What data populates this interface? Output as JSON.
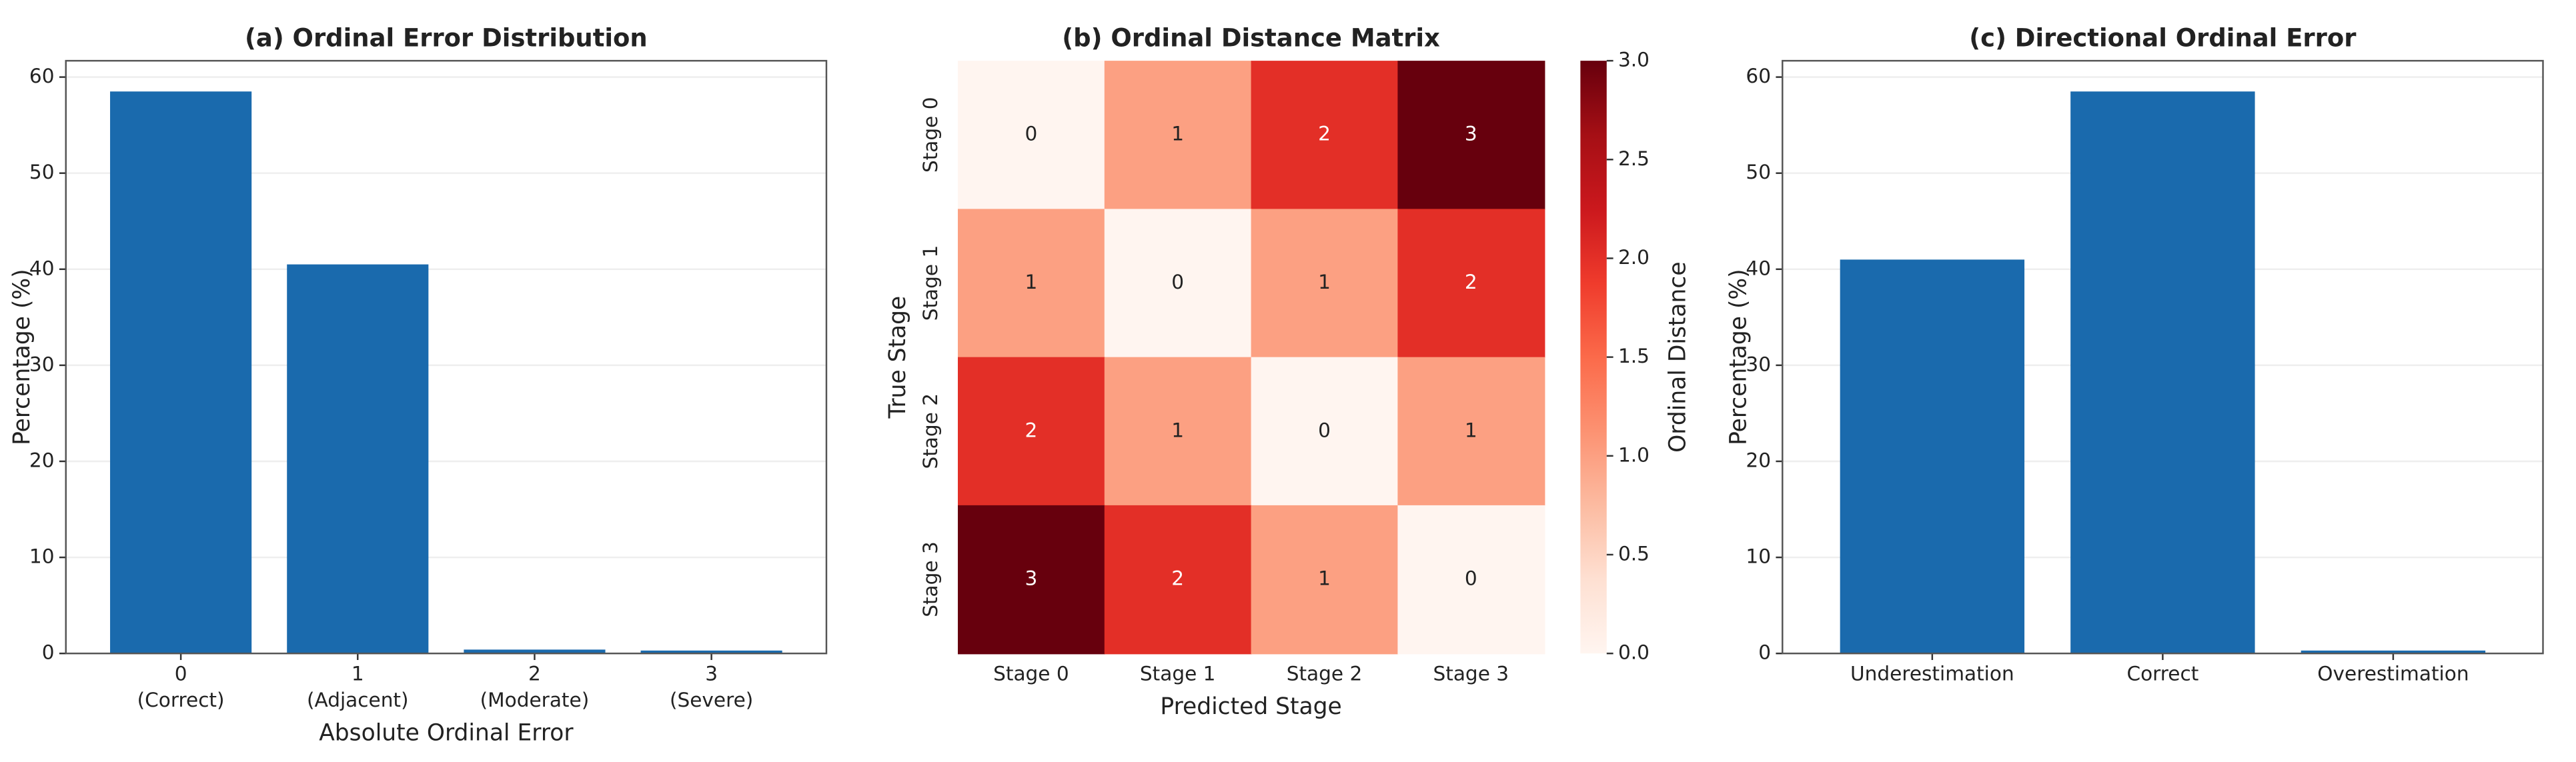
{
  "chart_data": [
    {
      "type": "bar",
      "title": "(a) Ordinal Error Distribution",
      "categories": [
        [
          "0",
          "(Correct)"
        ],
        [
          "1",
          "(Adjacent)"
        ],
        [
          "2",
          "(Moderate)"
        ],
        [
          "3",
          "(Severe)"
        ]
      ],
      "values": [
        58.5,
        40.5,
        0.4,
        0.3
      ],
      "color": "#1a6aad",
      "xlabel": "Absolute Ordinal Error",
      "ylabel": "Percentage (%)",
      "ylim": [
        0,
        61.7
      ],
      "yticks": [
        0,
        10,
        20,
        30,
        40,
        50,
        60
      ],
      "grid": true
    },
    {
      "type": "heatmap",
      "title": "(b) Ordinal Distance Matrix",
      "x": [
        "Stage 0",
        "Stage 1",
        "Stage 2",
        "Stage 3"
      ],
      "y": [
        "Stage 0",
        "Stage 1",
        "Stage 2",
        "Stage 3"
      ],
      "values": [
        [
          0,
          1,
          2,
          3
        ],
        [
          1,
          0,
          1,
          2
        ],
        [
          2,
          1,
          0,
          1
        ],
        [
          3,
          2,
          1,
          0
        ]
      ],
      "xlabel": "Predicted Stage",
      "ylabel": "True Stage",
      "cmap": "Reds",
      "colorbar_label": "Ordinal Distance",
      "clim": [
        0,
        3
      ],
      "cticks": [
        {
          "value": 0,
          "label": "0.0"
        },
        {
          "value": 0.5,
          "label": "0.5"
        },
        {
          "value": 1,
          "label": "1.0"
        },
        {
          "value": 1.5,
          "label": "1.5"
        },
        {
          "value": 2,
          "label": "2.0"
        },
        {
          "value": 2.5,
          "label": "2.5"
        },
        {
          "value": 3,
          "label": "3.0"
        }
      ]
    },
    {
      "type": "bar",
      "title": "(c) Directional Ordinal Error",
      "categories": [
        [
          "Underestimation"
        ],
        [
          "Correct"
        ],
        [
          "Overestimation"
        ]
      ],
      "values": [
        41,
        58.5,
        0.3
      ],
      "color": "#1a6aad",
      "ylabel": "Percentage (%)",
      "ylim": [
        0,
        61.7
      ],
      "yticks": [
        0,
        10,
        20,
        30,
        40,
        50,
        60
      ],
      "grid": true
    }
  ]
}
